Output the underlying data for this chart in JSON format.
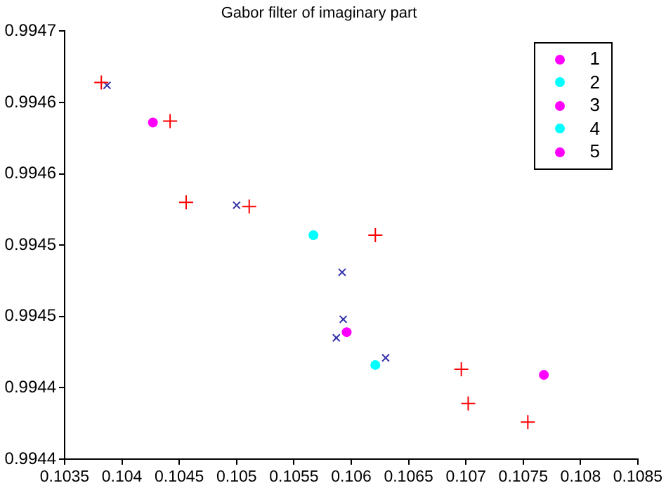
{
  "chart_data": {
    "type": "scatter",
    "title": "Gabor filter of imaginary part",
    "series": [
      {
        "color": "#ff0000",
        "marker": "plus",
        "x": [
          0.10382,
          0.10442,
          0.10456,
          0.10511,
          0.10621,
          0.10696,
          0.10702,
          0.10754
        ],
        "values": [
          0.994664,
          0.994637,
          0.99458,
          0.994577,
          0.994557,
          0.994463,
          0.994439,
          0.994426
        ]
      },
      {
        "color": "#3333aa",
        "marker": "cross",
        "x": [
          0.10387,
          0.105,
          0.10592,
          0.10593,
          0.10587,
          0.1063
        ],
        "values": [
          0.994662,
          0.994578,
          0.994531,
          0.994498,
          0.994485,
          0.994471
        ]
      },
      {
        "name": "1",
        "color": "#ff00ff",
        "marker": "circle",
        "x": [
          0.10427
        ],
        "values": [
          0.994636
        ]
      },
      {
        "name": "2",
        "color": "#00ffff",
        "marker": "circle",
        "x": [
          0.10567
        ],
        "values": [
          0.994557
        ]
      },
      {
        "name": "3",
        "color": "#ff00ff",
        "marker": "circle",
        "x": [
          0.10596
        ],
        "values": [
          0.994489
        ]
      },
      {
        "name": "4",
        "color": "#00ffff",
        "marker": "circle",
        "x": [
          0.10621
        ],
        "values": [
          0.994466
        ]
      },
      {
        "name": "5",
        "color": "#ff00ff",
        "marker": "circle",
        "x": [
          0.10768
        ],
        "values": [
          0.994459
        ]
      }
    ],
    "xlim": [
      0.1035,
      0.1085
    ],
    "xticks": [
      0.1035,
      0.104,
      0.1045,
      0.105,
      0.1055,
      0.106,
      0.1065,
      0.107,
      0.1075,
      0.108,
      0.1085
    ],
    "ylim": [
      0.9944,
      0.9947
    ],
    "yticks": [
      0.9944,
      {
        "value": 0.99445,
        "label": "0.9944"
      },
      {
        "value": 0.9945,
        "label": "0.9945"
      },
      {
        "value": 0.99455,
        "label": "0.9945"
      },
      {
        "value": 0.9946,
        "label": "0.9946"
      },
      {
        "value": 0.99465,
        "label": "0.9946"
      },
      0.9947
    ],
    "grid": false,
    "legend": "top right"
  }
}
